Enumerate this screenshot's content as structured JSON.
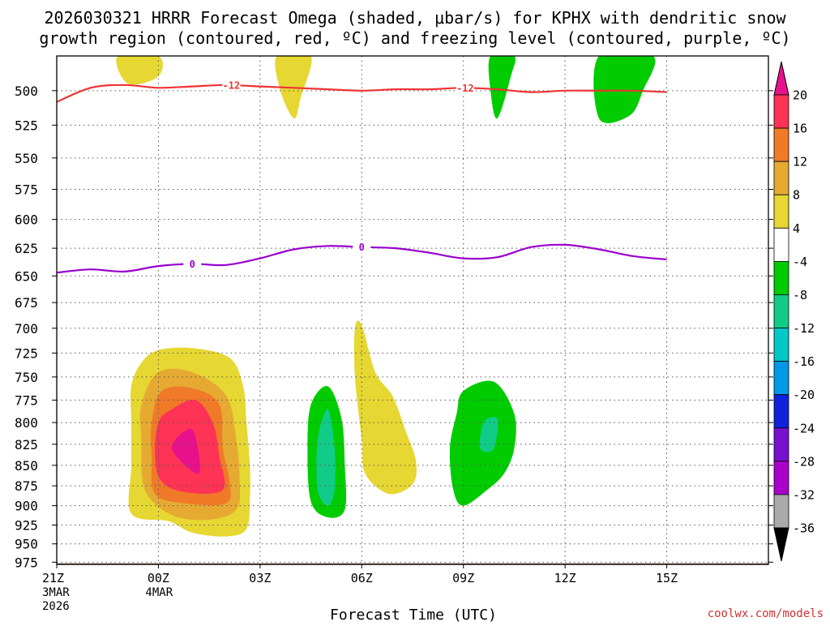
{
  "chart_data": {
    "type": "heatmap",
    "title_line1": "2026030321 HRRR Forecast Omega (shaded, μbar/s) for KPHX with dendritic snow",
    "title_line2": "growth region (contoured, red, ºC) and freezing level (contoured, purple, ºC)",
    "xlabel": "Forecast Time (UTC)",
    "credit": "coolwx.com/models",
    "x_hours": [
      -3,
      18
    ],
    "y_range_hPa": [
      476,
      978
    ],
    "x_ticks": [
      {
        "hour": -3,
        "label": "21Z",
        "sub1": "3MAR",
        "sub2": "2026"
      },
      {
        "hour": 0,
        "label": "00Z",
        "sub1": "4MAR",
        "sub2": ""
      },
      {
        "hour": 3,
        "label": "03Z",
        "sub1": "",
        "sub2": ""
      },
      {
        "hour": 6,
        "label": "06Z",
        "sub1": "",
        "sub2": ""
      },
      {
        "hour": 9,
        "label": "09Z",
        "sub1": "",
        "sub2": ""
      },
      {
        "hour": 12,
        "label": "12Z",
        "sub1": "",
        "sub2": ""
      },
      {
        "hour": 15,
        "label": "15Z",
        "sub1": "",
        "sub2": ""
      }
    ],
    "y_ticks": [
      500,
      525,
      550,
      575,
      600,
      625,
      650,
      675,
      700,
      725,
      750,
      775,
      800,
      825,
      850,
      875,
      900,
      925,
      950,
      975
    ],
    "surface_pressure_hPa": 975,
    "colorbar": {
      "labels": [
        "20",
        "16",
        "12",
        "8",
        "4",
        "-4",
        "-8",
        "-12",
        "-16",
        "-20",
        "-24",
        "-28",
        "-32",
        "-36"
      ],
      "colors": [
        "#ff3355",
        "#f07a28",
        "#e6aa32",
        "#e6d732",
        "#ffffff",
        "#00cc00",
        "#11cc88",
        "#00c8c8",
        "#0099e6",
        "#1122dd",
        "#7711cc",
        "#aa00cc",
        "#aaaaaa"
      ],
      "top_triangle": "#e8118c",
      "bottom_triangle": "#000000"
    },
    "omega_regions": [
      {
        "level": "4 to 8",
        "color": "#e6d732",
        "points": [
          [
            -1.2,
            476
          ],
          [
            0,
            476
          ],
          [
            0,
            490
          ],
          [
            -0.9,
            495
          ]
        ]
      },
      {
        "level": "4 to 8",
        "color": "#e6d732",
        "points": [
          [
            3.5,
            476
          ],
          [
            4.5,
            476
          ],
          [
            4.2,
            505
          ],
          [
            4.0,
            520
          ],
          [
            3.6,
            500
          ]
        ]
      },
      {
        "level": "-4 to -8",
        "color": "#00cc00",
        "points": [
          [
            9.8,
            476
          ],
          [
            10.5,
            476
          ],
          [
            10.4,
            490
          ],
          [
            10.0,
            520
          ],
          [
            9.8,
            500
          ]
        ]
      },
      {
        "level": "-4 to -8",
        "color": "#00cc00",
        "points": [
          [
            13,
            476
          ],
          [
            14.6,
            476
          ],
          [
            14.3,
            500
          ],
          [
            13.9,
            518
          ],
          [
            13,
            520
          ]
        ]
      },
      {
        "level": "4 to 8",
        "color": "#e6d732",
        "points": [
          [
            -0.5,
            735
          ],
          [
            0,
            722
          ],
          [
            1,
            720
          ],
          [
            2.1,
            730
          ],
          [
            2.5,
            760
          ],
          [
            2.6,
            800
          ],
          [
            2.7,
            850
          ],
          [
            2.7,
            890
          ],
          [
            2.6,
            930
          ],
          [
            2.0,
            940
          ],
          [
            1.0,
            935
          ],
          [
            0.3,
            920
          ],
          [
            -0.8,
            910
          ],
          [
            -0.8,
            850
          ],
          [
            -0.8,
            800
          ],
          [
            -0.8,
            760
          ]
        ]
      },
      {
        "level": "8 to 12",
        "color": "#e6aa32",
        "points": [
          [
            0,
            745
          ],
          [
            1,
            745
          ],
          [
            2,
            770
          ],
          [
            2.3,
            820
          ],
          [
            2.4,
            870
          ],
          [
            2.3,
            905
          ],
          [
            1.5,
            918
          ],
          [
            0.4,
            912
          ],
          [
            -0.4,
            880
          ],
          [
            -0.5,
            820
          ],
          [
            -0.5,
            780
          ]
        ]
      },
      {
        "level": "12 to 16",
        "color": "#f07a28",
        "points": [
          [
            0.1,
            765
          ],
          [
            1,
            762
          ],
          [
            1.8,
            780
          ],
          [
            1.9,
            830
          ],
          [
            2.1,
            870
          ],
          [
            2.0,
            897
          ],
          [
            0.8,
            897
          ],
          [
            -0.1,
            885
          ],
          [
            -0.2,
            840
          ],
          [
            -0.2,
            800
          ]
        ]
      },
      {
        "level": "16 to 20",
        "color": "#ff3355",
        "points": [
          [
            0.4,
            785
          ],
          [
            1.1,
            775
          ],
          [
            1.6,
            800
          ],
          [
            1.8,
            840
          ],
          [
            1.9,
            880
          ],
          [
            0.8,
            883
          ],
          [
            0.1,
            870
          ],
          [
            -0.1,
            840
          ],
          [
            0,
            800
          ]
        ]
      },
      {
        "level": "> 20",
        "color": "#e8118c",
        "points": [
          [
            0.4,
            830
          ],
          [
            1.0,
            808
          ],
          [
            1.2,
            860
          ]
        ]
      },
      {
        "level": "4 to 8",
        "color": "#e6d732",
        "points": [
          [
            6,
            697
          ],
          [
            6.4,
            745
          ],
          [
            6.9,
            770
          ],
          [
            7.3,
            810
          ],
          [
            7.6,
            845
          ],
          [
            7.5,
            873
          ],
          [
            6.8,
            885
          ],
          [
            6.1,
            860
          ],
          [
            6.0,
            820
          ],
          [
            5.8,
            750
          ],
          [
            5.8,
            700
          ]
        ]
      },
      {
        "level": "-4 to -8",
        "color": "#00cc00",
        "points": [
          [
            5.0,
            760
          ],
          [
            5.4,
            795
          ],
          [
            5.5,
            850
          ],
          [
            5.5,
            905
          ],
          [
            5.0,
            915
          ],
          [
            4.5,
            895
          ],
          [
            4.4,
            830
          ],
          [
            4.5,
            780
          ]
        ]
      },
      {
        "level": "-8 to -12",
        "color": "#11cc88",
        "points": [
          [
            5.0,
            785
          ],
          [
            5.2,
            830
          ],
          [
            5.2,
            880
          ],
          [
            5.0,
            900
          ],
          [
            4.7,
            880
          ],
          [
            4.7,
            820
          ]
        ]
      },
      {
        "level": "-4 to -8",
        "color": "#00cc00",
        "points": [
          [
            9.0,
            765
          ],
          [
            9.9,
            755
          ],
          [
            10.5,
            790
          ],
          [
            10.5,
            830
          ],
          [
            10.2,
            860
          ],
          [
            9.7,
            880
          ],
          [
            9.0,
            900
          ],
          [
            8.7,
            880
          ],
          [
            8.6,
            830
          ],
          [
            8.8,
            790
          ]
        ]
      },
      {
        "level": "-8 to -12",
        "color": "#11cc88",
        "points": [
          [
            9.6,
            800
          ],
          [
            10.0,
            796
          ],
          [
            9.9,
            830
          ],
          [
            9.5,
            830
          ]
        ]
      }
    ],
    "contours": [
      {
        "name": "dgz-minus12",
        "label": "-12",
        "color": "#ee3333",
        "points": [
          [
            -3,
            508
          ],
          [
            -2,
            498
          ],
          [
            -1,
            496
          ],
          [
            0,
            498
          ],
          [
            1,
            497
          ],
          [
            2,
            496
          ],
          [
            3,
            497
          ],
          [
            4,
            498
          ],
          [
            5,
            499
          ],
          [
            6,
            500
          ],
          [
            7,
            499
          ],
          [
            8,
            499
          ],
          [
            9,
            498
          ],
          [
            10,
            499
          ],
          [
            11,
            501
          ],
          [
            12,
            500
          ],
          [
            13,
            500
          ],
          [
            14,
            500
          ],
          [
            15,
            501
          ]
        ],
        "labels_at": [
          [
            2.15,
            496
          ],
          [
            9.05,
            498
          ]
        ]
      },
      {
        "name": "freezing-level-0",
        "label": "0",
        "color": "#9900cc",
        "points": [
          [
            -3,
            647
          ],
          [
            -2,
            644
          ],
          [
            -1,
            646
          ],
          [
            0,
            641
          ],
          [
            1,
            639
          ],
          [
            2,
            640
          ],
          [
            3,
            634
          ],
          [
            4,
            626
          ],
          [
            5,
            623
          ],
          [
            6,
            624
          ],
          [
            7,
            625
          ],
          [
            8,
            629
          ],
          [
            9,
            634
          ],
          [
            10,
            633
          ],
          [
            11,
            624
          ],
          [
            12,
            622
          ],
          [
            13,
            626
          ],
          [
            14,
            632
          ],
          [
            15,
            635
          ]
        ],
        "labels_at": [
          [
            1.0,
            639
          ],
          [
            6.0,
            624
          ]
        ]
      }
    ]
  }
}
